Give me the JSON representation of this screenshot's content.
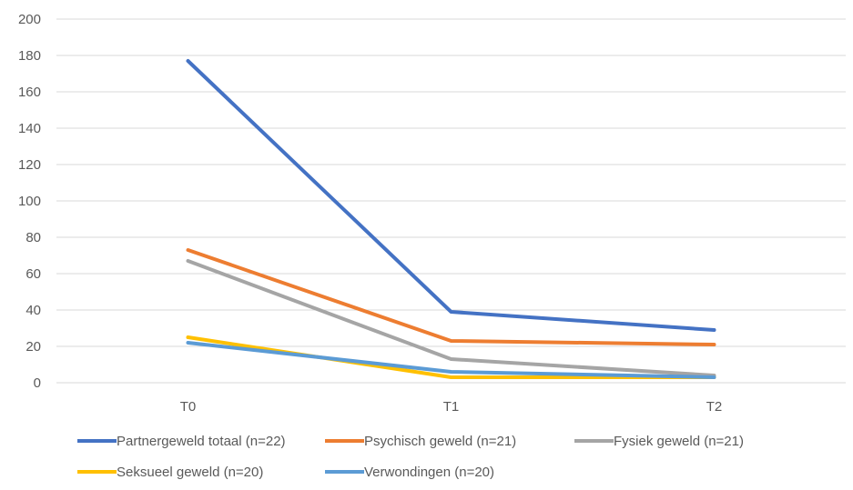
{
  "chart_data": {
    "type": "line",
    "categories": [
      "T0",
      "T1",
      "T2"
    ],
    "ylim": [
      0,
      200
    ],
    "yticks": [
      0,
      20,
      40,
      60,
      80,
      100,
      120,
      140,
      160,
      180,
      200
    ],
    "grid": true,
    "legend_position": "bottom",
    "series": [
      {
        "name": "Partnergeweld totaal (n=22)",
        "color": "#4472C4",
        "values": [
          177,
          39,
          29
        ]
      },
      {
        "name": "Psychisch geweld (n=21)",
        "color": "#ED7D31",
        "values": [
          73,
          23,
          21
        ]
      },
      {
        "name": "Fysiek geweld (n=21)",
        "color": "#A5A5A5",
        "values": [
          67,
          13,
          4
        ]
      },
      {
        "name": "Seksueel geweld (n=20)",
        "color": "#FFC000",
        "values": [
          25,
          3,
          3
        ]
      },
      {
        "name": "Verwondingen (n=20)",
        "color": "#5B9BD5",
        "values": [
          22,
          6,
          3
        ]
      }
    ]
  }
}
